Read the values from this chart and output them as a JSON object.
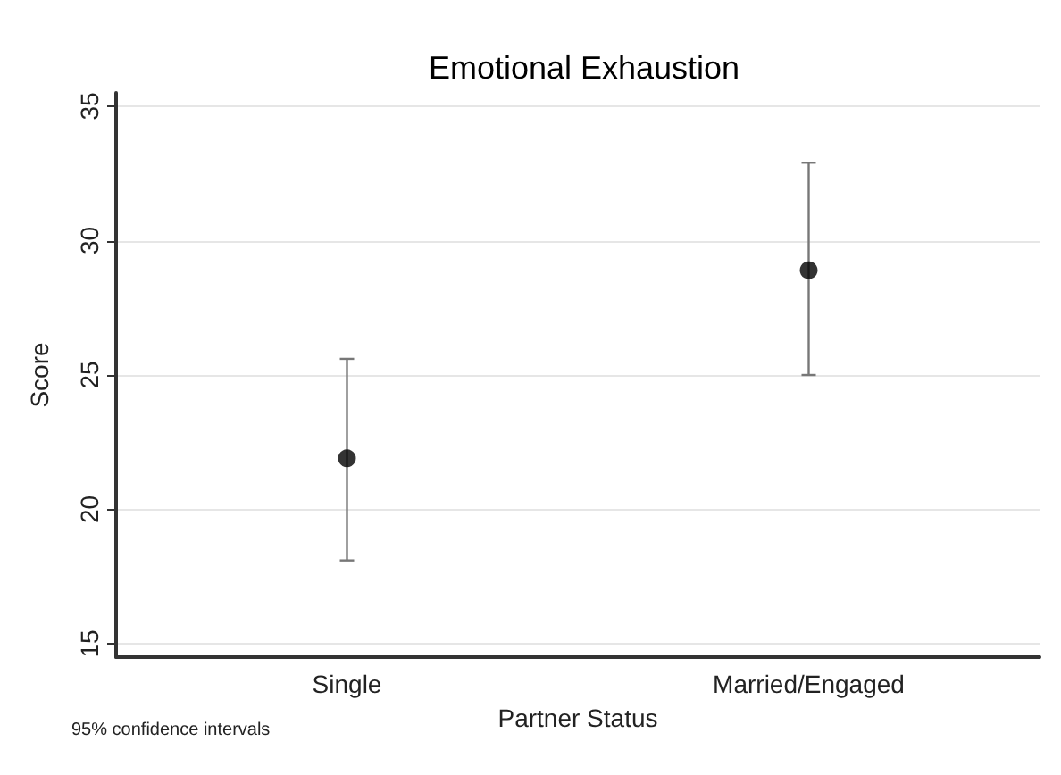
{
  "chart_data": {
    "type": "scatter",
    "title": "Emotional Exhaustion",
    "xlabel": "Partner Status",
    "ylabel": "Score",
    "categories": [
      "Single",
      "Married/Engaged"
    ],
    "series": [
      {
        "color": "#000000",
        "values": [
          21.9,
          28.9
        ],
        "errors": [
          [
            18.1,
            25.6
          ],
          [
            25.0,
            32.9
          ]
        ]
      }
    ],
    "ylim": [
      14.5,
      35.5
    ],
    "yticks": [
      15,
      20,
      25,
      30,
      35
    ],
    "grid": "y",
    "marker": "circle",
    "annotations": [
      "95% confidence intervals"
    ]
  }
}
